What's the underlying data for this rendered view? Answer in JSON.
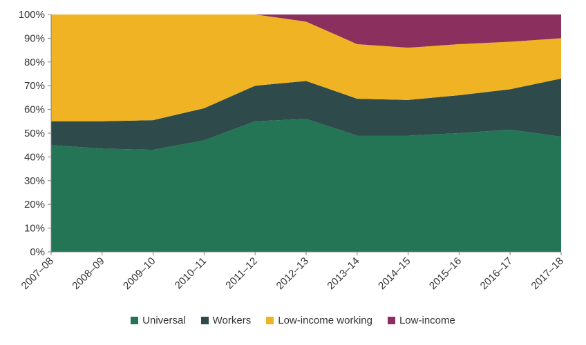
{
  "chart_data": {
    "type": "area",
    "stacked": true,
    "categories": [
      "2007–08",
      "2008–09",
      "2009–10",
      "2010–11",
      "2011–12",
      "2012–13",
      "2013–14",
      "2014–15",
      "2015–16",
      "2016–17",
      "2017–18"
    ],
    "series": [
      {
        "name": "Universal",
        "color": "#237555",
        "values": [
          45,
          43.5,
          43,
          47,
          55,
          56,
          49,
          49,
          50,
          51.5,
          48.5
        ]
      },
      {
        "name": "Workers",
        "color": "#2E4A4A",
        "values": [
          10,
          11.5,
          12.5,
          13.5,
          15,
          16,
          15.5,
          15,
          16,
          17,
          24.5
        ]
      },
      {
        "name": "Low-income working",
        "color": "#F0B323",
        "values": [
          45,
          45,
          44.5,
          39.5,
          30,
          25,
          23,
          22,
          21.5,
          20,
          17
        ]
      },
      {
        "name": "Low-income",
        "color": "#8B2F5E",
        "values": [
          0,
          0,
          0,
          0,
          0,
          3,
          12.5,
          14,
          12.5,
          11.5,
          10
        ]
      }
    ],
    "ylim": [
      0,
      100
    ],
    "yticks": [
      "0%",
      "10%",
      "20%",
      "30%",
      "40%",
      "50%",
      "60%",
      "70%",
      "80%",
      "90%",
      "100%"
    ],
    "xlabel": "",
    "ylabel": "",
    "title": "",
    "grid": false,
    "legend_position": "bottom"
  }
}
